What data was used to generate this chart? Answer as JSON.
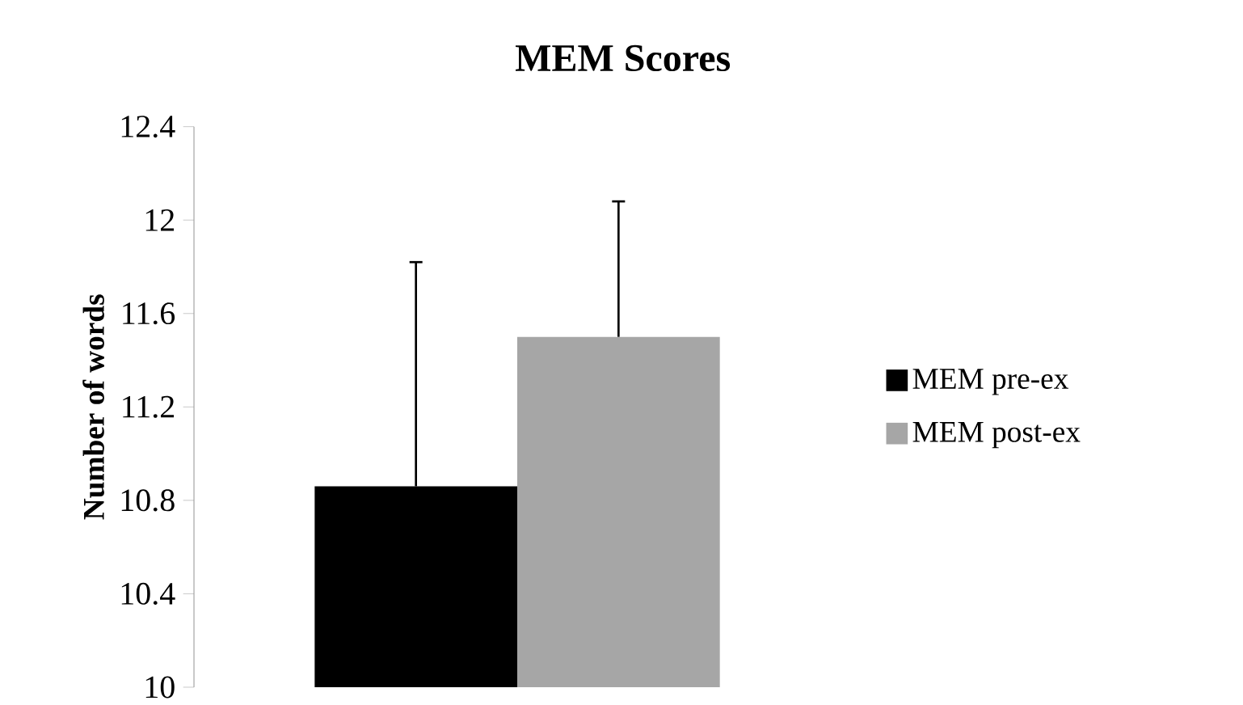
{
  "chart_data": {
    "type": "bar",
    "title": "MEM Scores",
    "ylabel": "Number of words",
    "categories": [
      null
    ],
    "series": [
      {
        "name": "MEM pre-ex",
        "color": "#000000",
        "values": [
          10.86
        ],
        "errors": [
          [
            10.86,
            11.82
          ]
        ]
      },
      {
        "name": "MEM post-ex",
        "color": "#a6a6a6",
        "values": [
          11.5
        ],
        "errors": [
          [
            11.5,
            12.08
          ]
        ]
      }
    ],
    "ylim": [
      10,
      12.4
    ],
    "yticks": [
      10,
      10.4,
      10.8,
      11.2,
      11.6,
      12,
      12.4
    ],
    "tick_labels": "y",
    "grid": false,
    "legend": "right"
  }
}
